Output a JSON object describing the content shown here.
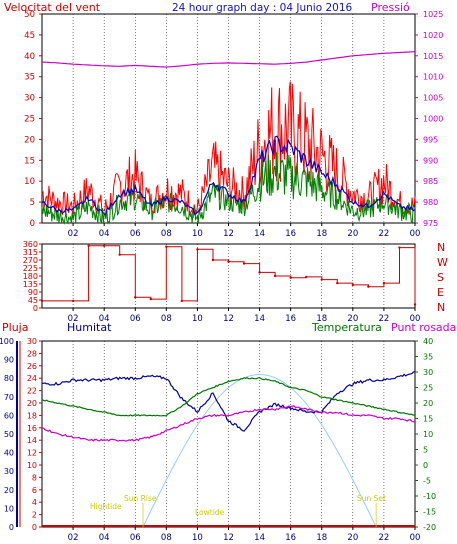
{
  "header": {
    "wind_label": "Velocitat del vent",
    "title": "24 hour graph day : 04 Junio 2016",
    "pressure_label": "Pressió"
  },
  "compass": [
    "N",
    "W",
    "S",
    "E",
    "N"
  ],
  "bottom_labels": {
    "rain": "Pluja",
    "humidity": "Humitat",
    "temperature": "Temperatura",
    "dewpoint": "Punt rosada"
  },
  "annotations": {
    "sunrise": "Sun Rise",
    "sunset": "Sun Set",
    "lowtide": "Lowtide",
    "hightide": "Hightide"
  },
  "colors": {
    "wind": "#ff0000",
    "wind_avg": "#0000cc",
    "gust": "#008000",
    "pressure": "#cc00cc",
    "direction": "#cc0000",
    "humidity": "#000099",
    "temperature": "#007700",
    "dewpoint": "#cc00cc",
    "solar": "#99ccff",
    "rain": "#cc0000",
    "annotation": "#cccc00"
  },
  "chart_data": [
    {
      "type": "line",
      "name": "wind_pressure",
      "x_ticks": [
        "02",
        "04",
        "06",
        "08",
        "10",
        "12",
        "14",
        "16",
        "18",
        "20",
        "22",
        "00"
      ],
      "left_axis": {
        "label": "Velocitat del vent",
        "ylim": [
          0,
          50
        ],
        "ticks": [
          0,
          5,
          10,
          15,
          20,
          25,
          30,
          35,
          40,
          45,
          50
        ]
      },
      "right_axis": {
        "label": "Pressió",
        "ylim": [
          975,
          1025
        ],
        "ticks": [
          975,
          980,
          985,
          990,
          995,
          1000,
          1005,
          1010,
          1015,
          1020,
          1025
        ]
      },
      "hours": [
        0,
        1,
        2,
        3,
        4,
        5,
        6,
        7,
        8,
        9,
        10,
        11,
        12,
        13,
        14,
        15,
        16,
        17,
        18,
        19,
        20,
        21,
        22,
        23,
        24
      ],
      "series": [
        {
          "values": [
            7,
            5,
            4,
            8,
            3,
            9,
            11,
            5,
            8,
            7,
            3,
            13,
            9,
            7,
            18,
            23,
            22,
            19,
            16,
            12,
            7,
            6,
            10,
            5,
            4
          ]
        },
        {
          "values": [
            5,
            3,
            3,
            6,
            2,
            7,
            8,
            4,
            6,
            5,
            2,
            10,
            7,
            5,
            15,
            19,
            18,
            15,
            12,
            9,
            5,
            4,
            7,
            4,
            3
          ]
        },
        {
          "values": [
            3,
            2,
            1,
            4,
            1,
            5,
            6,
            3,
            5,
            4,
            1,
            7,
            5,
            4,
            10,
            12,
            11,
            10,
            8,
            6,
            3,
            3,
            5,
            3,
            2
          ]
        },
        {
          "values": [
            1013.5,
            1013.3,
            1013,
            1012.8,
            1012.6,
            1012.5,
            1012.7,
            1012.5,
            1012.3,
            1012.6,
            1013,
            1013.2,
            1013.3,
            1013.2,
            1013.1,
            1013,
            1013.2,
            1013.5,
            1014,
            1014.5,
            1015,
            1015.3,
            1015.6,
            1015.8,
            1016
          ]
        }
      ]
    },
    {
      "type": "scatter",
      "name": "wind_direction",
      "ylim": [
        0,
        360
      ],
      "ticks": [
        0,
        45,
        90,
        135,
        180,
        225,
        270,
        315,
        360
      ],
      "hours": [
        0,
        2,
        3,
        4,
        5,
        6,
        7,
        8,
        9,
        10,
        11,
        12,
        13,
        14,
        15,
        16,
        17,
        18,
        19,
        20,
        21,
        22,
        23,
        24
      ],
      "values": [
        40,
        40,
        350,
        350,
        300,
        60,
        50,
        345,
        40,
        330,
        270,
        260,
        250,
        200,
        180,
        170,
        175,
        160,
        140,
        130,
        120,
        140,
        340,
        20
      ]
    },
    {
      "type": "line",
      "name": "humidity_temp",
      "axes": {
        "rain": {
          "ylim": [
            0,
            30
          ],
          "ticks": [
            0,
            2,
            4,
            6,
            8,
            10,
            12,
            14,
            16,
            18,
            20,
            22,
            24,
            26,
            28,
            30
          ]
        },
        "humidity": {
          "ylim": [
            0,
            100
          ],
          "ticks": [
            0,
            10,
            20,
            30,
            40,
            50,
            60,
            70,
            80,
            90,
            100
          ]
        },
        "temperature": {
          "ylim": [
            -20,
            40
          ],
          "ticks": [
            -20,
            -15,
            -10,
            -5,
            0,
            5,
            10,
            15,
            20,
            25,
            30,
            35,
            40
          ]
        }
      },
      "hours": [
        0,
        1,
        2,
        3,
        4,
        5,
        6,
        7,
        8,
        9,
        10,
        11,
        12,
        13,
        14,
        15,
        16,
        17,
        18,
        19,
        20,
        21,
        22,
        23,
        24
      ],
      "series": [
        {
          "values": [
            77,
            77,
            79,
            79,
            79,
            80,
            80,
            81,
            80,
            69,
            62,
            72,
            57,
            52,
            62,
            66,
            64,
            62,
            62,
            72,
            77,
            79,
            79,
            81,
            83
          ]
        },
        {
          "values": [
            21,
            20,
            19,
            18,
            17,
            16,
            16,
            16,
            16,
            19,
            23,
            25,
            27,
            28,
            28,
            27,
            25,
            24,
            22,
            21,
            20,
            19,
            18,
            17,
            16
          ]
        },
        {
          "values": [
            12,
            10,
            9,
            8,
            8,
            8,
            8,
            9,
            11,
            13,
            15,
            16,
            16,
            17,
            18,
            18,
            19,
            18,
            17,
            17,
            16,
            16,
            15,
            15,
            14
          ]
        },
        {
          "values": [
            0,
            0,
            0,
            0,
            0,
            0.1,
            0.3,
            0.6,
            0.9,
            1.0,
            0.9,
            0.6,
            0.3,
            0.1,
            0,
            0,
            0,
            0,
            0,
            0,
            0,
            0,
            0,
            0,
            0
          ]
        },
        {
          "values": [
            0,
            0,
            0,
            0,
            0,
            0,
            0,
            0,
            0,
            0,
            0,
            0,
            0,
            0,
            0,
            0,
            0,
            0,
            0,
            0,
            0,
            0,
            0,
            0,
            0
          ]
        }
      ]
    }
  ]
}
